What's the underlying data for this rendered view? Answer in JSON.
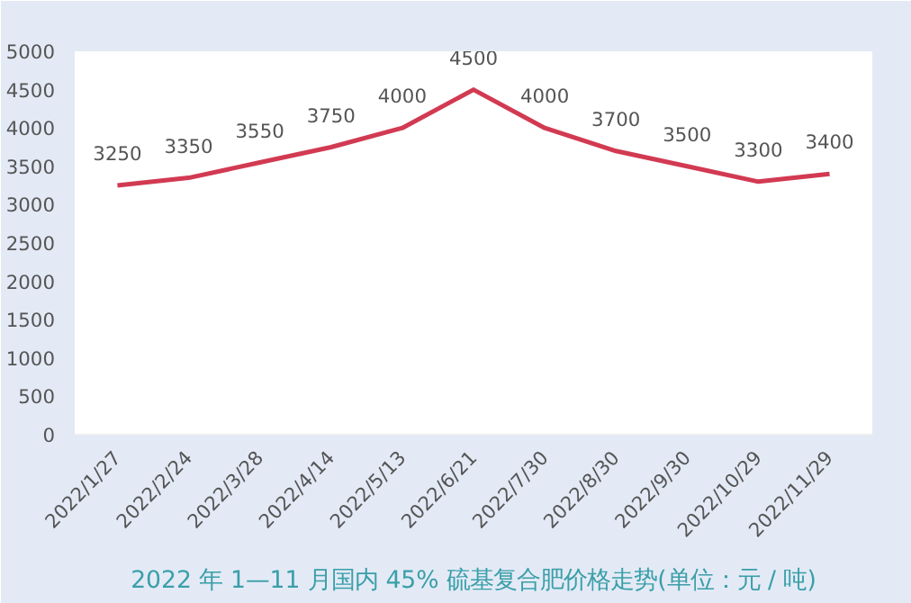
{
  "chart_data": {
    "type": "line",
    "title": "2022 年 1—11 月国内 45% 硫基复合肥价格走势(单位：元 / 吨)",
    "categories": [
      "2022/1/27",
      "2022/2/24",
      "2022/3/28",
      "2022/4/14",
      "2022/5/13",
      "2022/6/21",
      "2022/7/30",
      "2022/8/30",
      "2022/9/30",
      "2022/10/29",
      "2022/11/29"
    ],
    "series": [
      {
        "color": "#d23a52",
        "values": [
          3250,
          3350,
          3550,
          3750,
          4000,
          4500,
          4000,
          3700,
          3500,
          3300,
          3400
        ]
      }
    ],
    "ylim": [
      0,
      5000
    ],
    "yticks": [
      0,
      500,
      1000,
      1500,
      2000,
      2500,
      3000,
      3500,
      4000,
      4500,
      5000
    ],
    "data_labels": true,
    "grid": false,
    "marker": "none",
    "line_style": "solid"
  }
}
